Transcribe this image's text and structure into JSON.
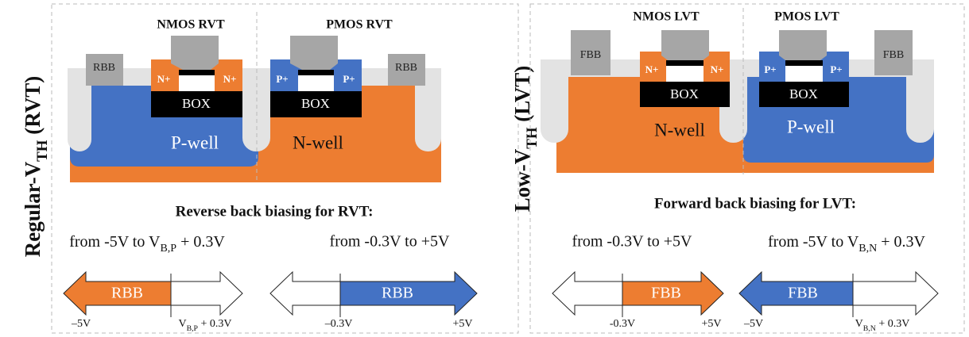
{
  "panels": [
    {
      "side_label": {
        "text": "Regular-V",
        "sub": "TH",
        "tail": " (RVT)"
      },
      "nmos": {
        "title": "NMOS RVT",
        "tap": "RBB",
        "diff_left": "N+",
        "diff_right": "N+",
        "box": "BOX",
        "well": "P-well"
      },
      "pmos": {
        "title": "PMOS RVT",
        "tap": "RBB",
        "diff_left": "P+",
        "diff_right": "P+",
        "box": "BOX",
        "well": "N-well"
      },
      "caption": "Reverse back biasing for RVT:",
      "ranges": [
        {
          "text": "from -5V to V",
          "sub": "B,P",
          "tail": " + 0.3V",
          "arrow_label": "RBB",
          "ticks": [
            {
              "text": "–5V"
            },
            {
              "text": "V",
              "sub": "B,P",
              "tail": " + 0.3V"
            }
          ]
        },
        {
          "text": "from -0.3V to +5V",
          "arrow_label": "RBB",
          "ticks": [
            {
              "text": "–0.3V"
            },
            {
              "text": "+5V"
            }
          ]
        }
      ]
    },
    {
      "side_label": {
        "text": "Low-V",
        "sub": "TH",
        "tail": " (LVT)"
      },
      "nmos": {
        "title": "NMOS LVT",
        "tap": "FBB",
        "diff_left": "N+",
        "diff_right": "N+",
        "box": "BOX",
        "well": "N-well"
      },
      "pmos": {
        "title": "PMOS LVT",
        "tap": "FBB",
        "diff_left": "P+",
        "diff_right": "P+",
        "box": "BOX",
        "well": "P-well"
      },
      "caption": "Forward back biasing for LVT:",
      "ranges": [
        {
          "text": "from -0.3V to +5V",
          "arrow_label": "FBB",
          "ticks": [
            {
              "text": "-0.3V"
            },
            {
              "text": "+5V"
            }
          ]
        },
        {
          "text": "from -5V to V",
          "sub": "B,N",
          "tail": " + 0.3V",
          "arrow_label": "FBB",
          "ticks": [
            {
              "text": "–5V"
            },
            {
              "text": "V",
              "sub": "B,N",
              "tail": " + 0.3V"
            }
          ]
        }
      ]
    }
  ]
}
